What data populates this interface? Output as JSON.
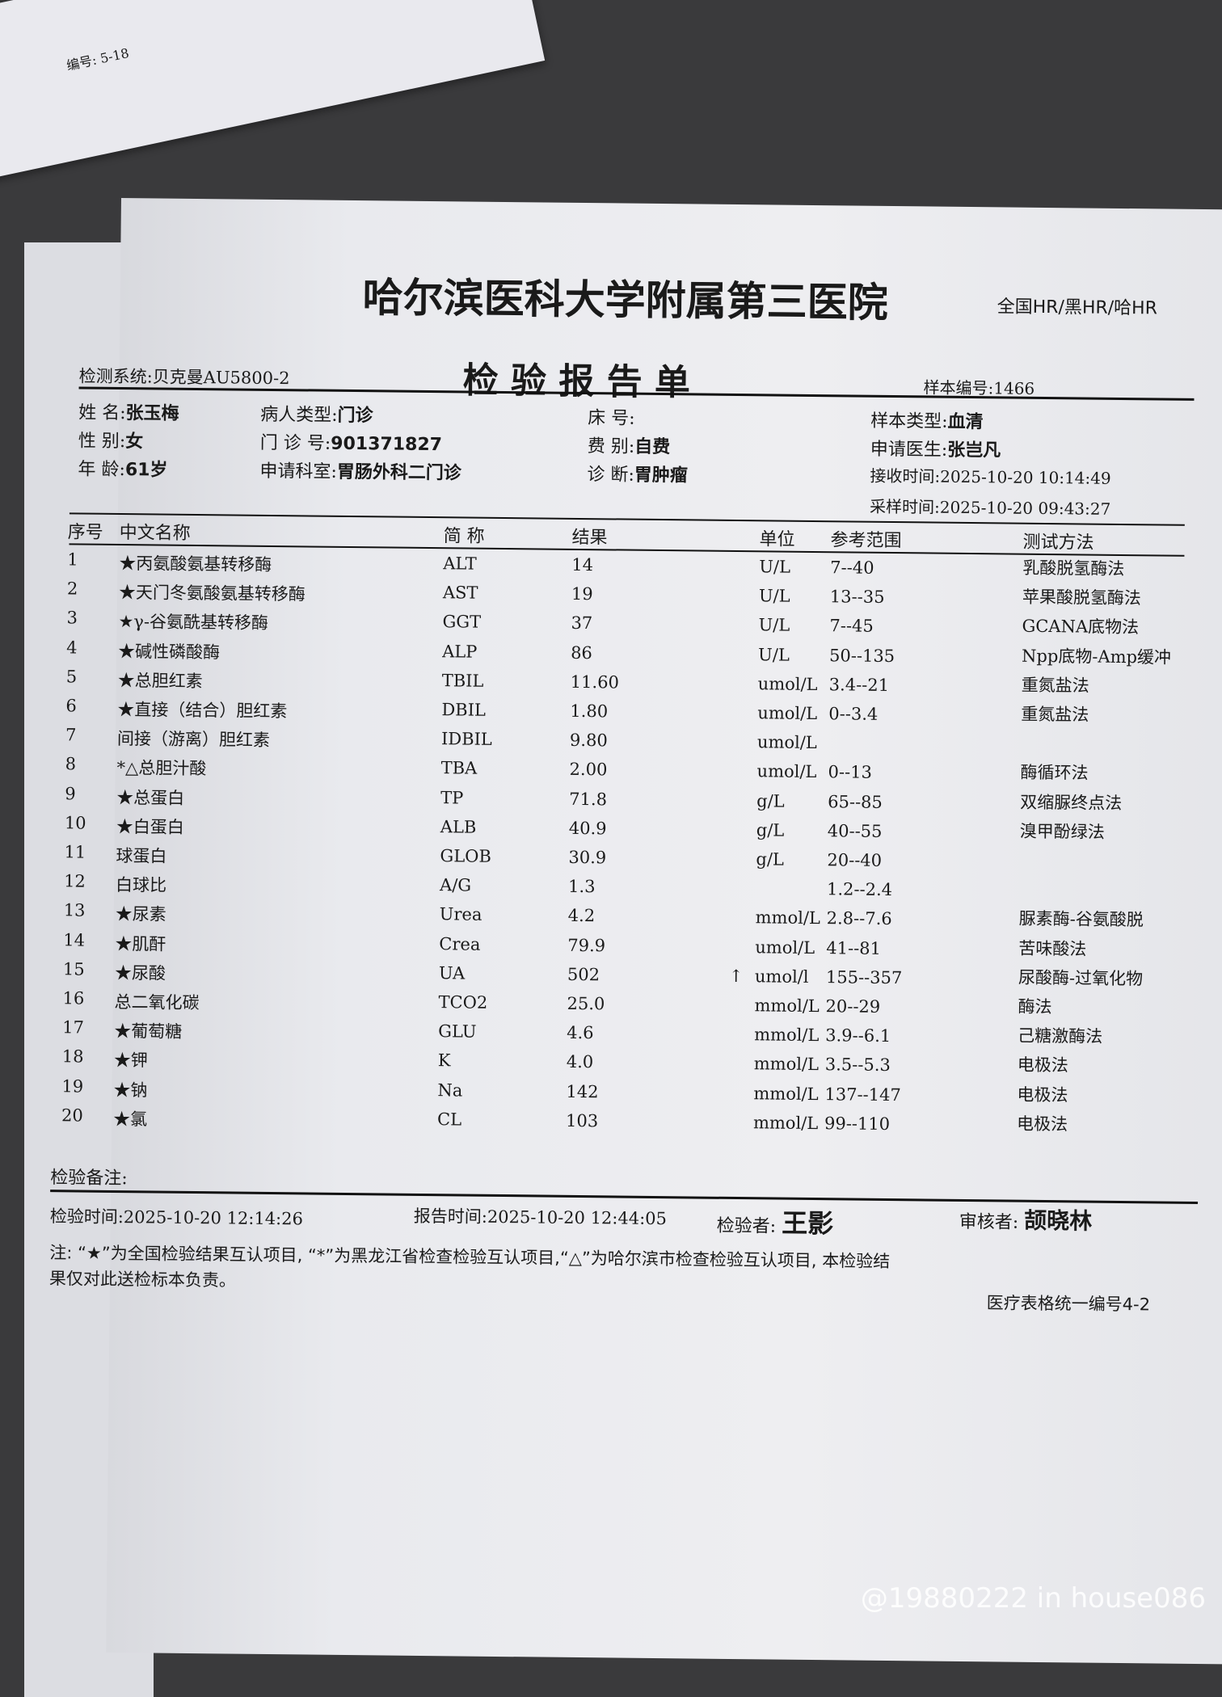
{
  "top_paper": {
    "label": "编号: 5-18"
  },
  "header": {
    "hospital": "哈尔滨医科大学附属第三医院",
    "recognition": "全国HR/黑HR/哈HR",
    "system": "检测系统:贝克曼AU5800-2",
    "title": "检 验 报 告 单",
    "sample_no": "样本编号:1466"
  },
  "patient": {
    "name_label": "姓    名:",
    "name": "张玉梅",
    "gender_label": "性    别:",
    "gender": "女",
    "age_label": "年    龄:",
    "age": "61岁",
    "type_label": "病人类型:",
    "type": "门诊",
    "clinic_no_label": "门 诊 号:",
    "clinic_no": "901371827",
    "dept_label": "申请科室:",
    "dept": "胃肠外科二门诊",
    "bed_label": "床    号:",
    "bed": "",
    "fee_label": "费    别:",
    "fee": "自费",
    "diag_label": "诊    断:",
    "diag": "胃肿瘤",
    "sample_type_label": "样本类型:",
    "sample_type": "血清",
    "doctor_label": "申请医生:",
    "doctor": "张岂凡",
    "received": "接收时间:2025-10-20 10:14:49",
    "sampled": "采样时间:2025-10-20 09:43:27"
  },
  "table": {
    "headers": [
      "序号",
      "中文名称",
      "简  称",
      "结果",
      "",
      "单位",
      "参考范围",
      "测试方法"
    ],
    "rows": [
      [
        "1",
        "★丙氨酸氨基转移酶",
        "ALT",
        "14",
        "",
        "U/L",
        "7--40",
        "乳酸脱氢酶法"
      ],
      [
        "2",
        "★天门冬氨酸氨基转移酶",
        "AST",
        "19",
        "",
        "U/L",
        "13--35",
        "苹果酸脱氢酶法"
      ],
      [
        "3",
        "★γ-谷氨酰基转移酶",
        "GGT",
        "37",
        "",
        "U/L",
        "7--45",
        "GCANA底物法"
      ],
      [
        "4",
        "★碱性磷酸酶",
        "ALP",
        "86",
        "",
        "U/L",
        "50--135",
        "Npp底物-Amp缓冲"
      ],
      [
        "5",
        "★总胆红素",
        "TBIL",
        "11.60",
        "",
        "umol/L",
        "3.4--21",
        "重氮盐法"
      ],
      [
        "6",
        "★直接（结合）胆红素",
        "DBIL",
        "1.80",
        "",
        "umol/L",
        "0--3.4",
        "重氮盐法"
      ],
      [
        "7",
        "间接（游离）胆红素",
        "IDBIL",
        "9.80",
        "",
        "umol/L",
        "",
        ""
      ],
      [
        "8",
        "*△总胆汁酸",
        "TBA",
        "2.00",
        "",
        "umol/L",
        "0--13",
        "酶循环法"
      ],
      [
        "9",
        "★总蛋白",
        "TP",
        "71.8",
        "",
        "g/L",
        "65--85",
        "双缩脲终点法"
      ],
      [
        "10",
        "★白蛋白",
        "ALB",
        "40.9",
        "",
        "g/L",
        "40--55",
        "溴甲酚绿法"
      ],
      [
        "11",
        "球蛋白",
        "GLOB",
        "30.9",
        "",
        "g/L",
        "20--40",
        ""
      ],
      [
        "12",
        "白球比",
        "A/G",
        "1.3",
        "",
        "",
        "1.2--2.4",
        ""
      ],
      [
        "13",
        "★尿素",
        "Urea",
        "4.2",
        "",
        "mmol/L",
        "2.8--7.6",
        "脲素酶-谷氨酸脱"
      ],
      [
        "14",
        "★肌酐",
        "Crea",
        "79.9",
        "",
        "umol/L",
        "41--81",
        "苦味酸法"
      ],
      [
        "15",
        "★尿酸",
        "UA",
        "502",
        "↑",
        "umol/l",
        "155--357",
        "尿酸酶-过氧化物"
      ],
      [
        "16",
        "总二氧化碳",
        "TCO2",
        "25.0",
        "",
        "mmol/L",
        "20--29",
        "酶法"
      ],
      [
        "17",
        "★葡萄糖",
        "GLU",
        "4.6",
        "",
        "mmol/L",
        "3.9--6.1",
        "己糖激酶法"
      ],
      [
        "18",
        "★钾",
        "K",
        "4.0",
        "",
        "mmol/L",
        "3.5--5.3",
        "电极法"
      ],
      [
        "19",
        "★钠",
        "Na",
        "142",
        "",
        "mmol/L",
        "137--147",
        "电极法"
      ],
      [
        "20",
        "★氯",
        "CL",
        "103",
        "",
        "mmol/L",
        "99--110",
        "电极法"
      ]
    ]
  },
  "footer": {
    "remarks": "检验备注:",
    "test_time": "检验时间:2025-10-20 12:14:26",
    "report_time": "报告时间:2025-10-20 12:44:05",
    "tester_label": "检验者:",
    "tester": "王影",
    "reviewer_label": "审核者:",
    "reviewer": "颉晓林",
    "note1": "注: “★”为全国检验结果互认项目, “*”为黑龙江省检查检验互认项目,“△”为哈尔滨市检查检验互认项目, 本检验结",
    "note2": "果仅对此送检标本负责。",
    "form_no": "医疗表格统一编号4-2"
  },
  "watermark": "@19880222 in house086",
  "colors": {
    "abnormal_flag": "#1a1a1a",
    "paper": "#eeeef1",
    "desk": "#3a3a3c"
  }
}
